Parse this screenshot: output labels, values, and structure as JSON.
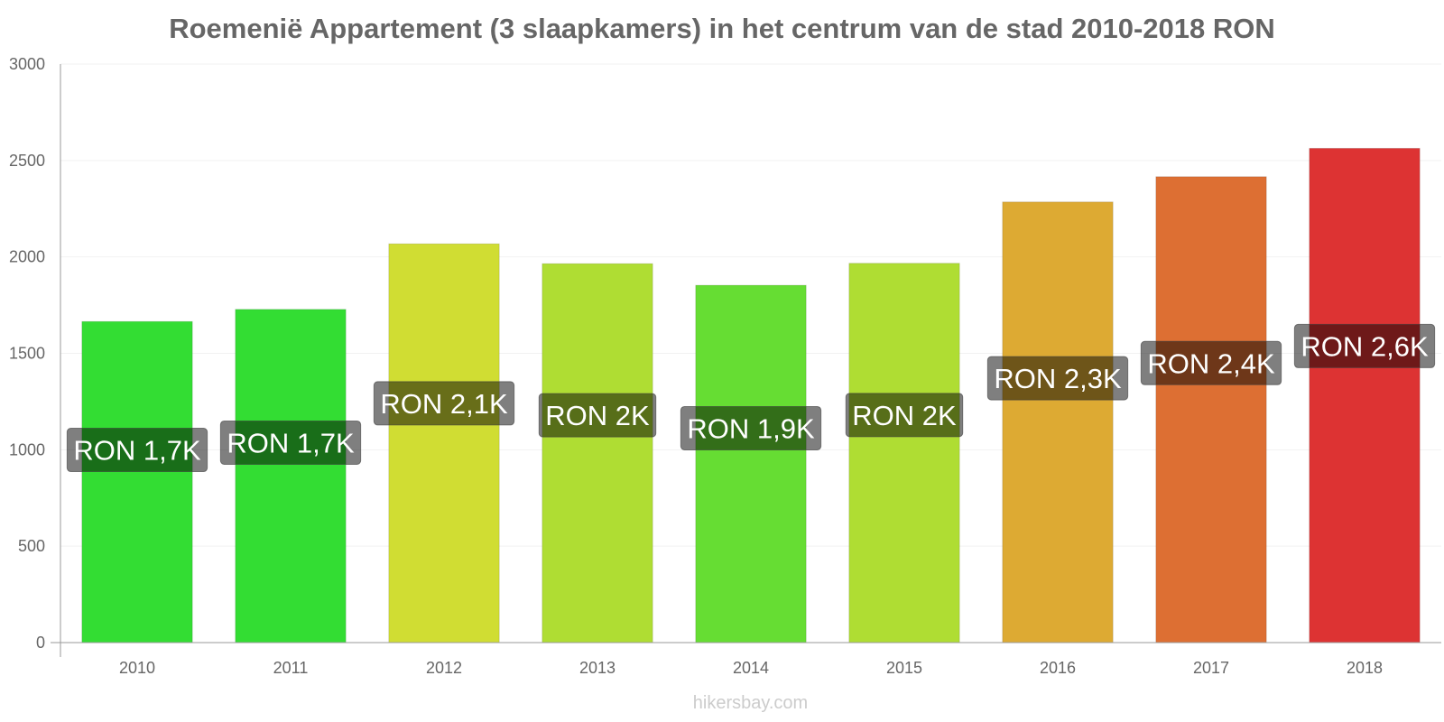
{
  "chart_data": {
    "type": "bar",
    "title": "Roemenië Appartement (3 slaapkamers) in het centrum van de stad 2010-2018 RON",
    "xlabel": "",
    "ylabel": "",
    "ylim": [
      0,
      3000
    ],
    "yticks": [
      0,
      500,
      1000,
      1500,
      2000,
      2500,
      3000
    ],
    "categories": [
      "2010",
      "2011",
      "2012",
      "2013",
      "2014",
      "2015",
      "2016",
      "2017",
      "2018"
    ],
    "values": [
      1665,
      1728,
      2068,
      1965,
      1853,
      1967,
      2285,
      2416,
      2563
    ],
    "data_labels": [
      "RON 1,7K",
      "RON 1,7K",
      "RON 2,1K",
      "RON 2K",
      "RON 1,9K",
      "RON 2K",
      "RON 2,3K",
      "RON 2,4K",
      "RON 2,6K"
    ],
    "bar_colors": [
      "#33dd33",
      "#33dd33",
      "#d0dd33",
      "#afdd33",
      "#66dd33",
      "#afdd33",
      "#ddaa33",
      "#dd6f33",
      "#dd3333"
    ],
    "grid": true,
    "legend": "none"
  },
  "watermark": "hikersbay.com"
}
